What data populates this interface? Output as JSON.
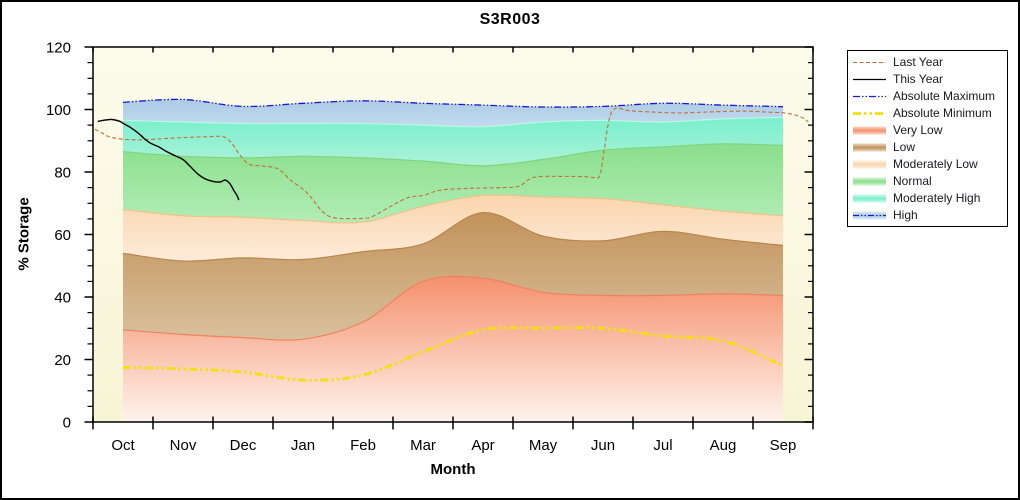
{
  "chart_data": {
    "type": "area",
    "title": "S3R003",
    "xlabel": "Month",
    "ylabel": "% Storage",
    "ylim": [
      0,
      120
    ],
    "y_major_ticks": [
      0,
      20,
      40,
      60,
      80,
      100,
      120
    ],
    "y_minor_step": 5,
    "grid": false,
    "legend_position": "right",
    "plot_bg": {
      "top": "#FDFCEC",
      "bottom": "#F8F4D6"
    },
    "frame_color": "#000000",
    "categories": [
      "Oct",
      "Nov",
      "Dec",
      "Jan",
      "Feb",
      "Mar",
      "Apr",
      "May",
      "Jun",
      "Jul",
      "Aug",
      "Sep"
    ],
    "bands": [
      {
        "name": "Very Low",
        "top": [
          29.5,
          28,
          27,
          26.5,
          32,
          45,
          46,
          41.5,
          40.5,
          40.5,
          41,
          40.5
        ],
        "base": "zero",
        "color_top": "#F5906C",
        "color_bottom": "#FEF3ED",
        "edge": "#EF8160"
      },
      {
        "name": "Low",
        "top": [
          54,
          51.5,
          52.5,
          52,
          54.5,
          57,
          67,
          59.5,
          58,
          61,
          58.5,
          56.5
        ],
        "base": "prev",
        "color_top": "#C2925A",
        "color_bottom": "#D9C19D",
        "edge": "#B7854A"
      },
      {
        "name": "Moderately Low",
        "top": [
          68,
          66,
          65.5,
          64.5,
          64,
          69,
          72.5,
          72,
          71.5,
          69.5,
          67.5,
          66
        ],
        "base": "prev",
        "color_top": "#FAD5AC",
        "color_bottom": "#FCEBDA",
        "edge": "#EDC28D"
      },
      {
        "name": "Normal",
        "top": [
          86.5,
          85,
          84.5,
          85,
          84.5,
          83.5,
          82,
          84,
          87,
          88,
          89,
          88.5
        ],
        "base": "prev",
        "color_top": "#8ADF8C",
        "color_bottom": "#B2EDB6",
        "edge": "#7ED57F"
      },
      {
        "name": "Moderately High",
        "top": [
          96.5,
          96,
          95.5,
          95.5,
          95.5,
          95,
          94.5,
          96,
          96.5,
          96,
          97,
          97.5
        ],
        "base": "prev",
        "color_top": "#79EFCD",
        "color_bottom": "#ADF2D8",
        "edge": "#B9F8E3"
      },
      {
        "name": "High",
        "top": [
          102.3,
          103.2,
          101,
          102,
          102.8,
          102,
          101.4,
          100.8,
          101,
          102,
          101.4,
          100.9
        ],
        "base": "prev",
        "color_top": "#ABCBE5",
        "color_bottom": "#C3DAEE",
        "edge": "none"
      }
    ],
    "lines": [
      {
        "name": "Absolute Maximum",
        "x": "months",
        "values": [
          102.3,
          103.2,
          101,
          102,
          102.8,
          102,
          101.4,
          100.8,
          101,
          102,
          101.4,
          100.9
        ],
        "color": "#1A1ACD",
        "width": 1.3,
        "dash": "7 2 1.5 2 1.5 2"
      },
      {
        "name": "Absolute Minimum",
        "x": "months",
        "values": [
          17.5,
          17,
          16,
          13.4,
          15,
          22.5,
          29.5,
          30,
          30,
          27.5,
          26,
          18
        ],
        "color": "#F2E10A",
        "width": 2.8,
        "dash": "8 3 2.5 3 2.5 3"
      },
      {
        "name": "Last Year",
        "points": [
          [
            -0.47,
            93.7
          ],
          [
            -0.35,
            92.5
          ],
          [
            -0.22,
            91.2
          ],
          [
            0,
            90.5
          ],
          [
            0.3,
            90.3
          ],
          [
            0.7,
            90.7
          ],
          [
            1,
            91
          ],
          [
            1.4,
            91.3
          ],
          [
            1.67,
            91.3
          ],
          [
            1.8,
            89.5
          ],
          [
            1.95,
            85.4
          ],
          [
            2.1,
            82.5
          ],
          [
            2.3,
            82
          ],
          [
            2.5,
            81.5
          ],
          [
            2.62,
            80.6
          ],
          [
            2.8,
            77.3
          ],
          [
            3,
            74.5
          ],
          [
            3.15,
            71.5
          ],
          [
            3.3,
            67.8
          ],
          [
            3.45,
            65.7
          ],
          [
            3.65,
            65.1
          ],
          [
            3.85,
            65.1
          ],
          [
            4,
            65.2
          ],
          [
            4.15,
            65.7
          ],
          [
            4.45,
            68.9
          ],
          [
            4.75,
            71.8
          ],
          [
            5,
            72.5
          ],
          [
            5.3,
            74.2
          ],
          [
            5.8,
            74.8
          ],
          [
            6.3,
            75
          ],
          [
            6.6,
            75.5
          ],
          [
            6.85,
            78.3
          ],
          [
            7.3,
            78.6
          ],
          [
            7.7,
            78.5
          ],
          [
            7.87,
            78.2
          ],
          [
            7.95,
            79
          ],
          [
            8.02,
            87
          ],
          [
            8.1,
            96.5
          ],
          [
            8.2,
            100.3
          ],
          [
            8.45,
            99.6
          ],
          [
            8.8,
            99.2
          ],
          [
            9.3,
            98.9
          ],
          [
            9.6,
            99.1
          ],
          [
            10.3,
            99.5
          ],
          [
            10.8,
            99.1
          ],
          [
            11.07,
            98.8
          ],
          [
            11.3,
            97.6
          ],
          [
            11.42,
            96.1
          ]
        ],
        "color": "#BE7139",
        "width": 1.1,
        "dash": "4 2.5"
      },
      {
        "name": "This Year",
        "points": [
          [
            -0.42,
            96.2
          ],
          [
            -0.3,
            96.6
          ],
          [
            -0.18,
            96.8
          ],
          [
            -0.05,
            96.2
          ],
          [
            0,
            95.6
          ],
          [
            0.12,
            94.3
          ],
          [
            0.25,
            92.5
          ],
          [
            0.35,
            90.8
          ],
          [
            0.45,
            89.3
          ],
          [
            0.6,
            88
          ],
          [
            0.72,
            86.6
          ],
          [
            0.87,
            85.2
          ],
          [
            1,
            84
          ],
          [
            1.12,
            81.8
          ],
          [
            1.25,
            79.3
          ],
          [
            1.37,
            77.8
          ],
          [
            1.5,
            77
          ],
          [
            1.62,
            76.8
          ],
          [
            1.7,
            77.4
          ],
          [
            1.78,
            76.3
          ],
          [
            1.85,
            74
          ],
          [
            1.9,
            72.5
          ],
          [
            1.93,
            71
          ]
        ],
        "color": "#000000",
        "width": 1.4,
        "dash": ""
      }
    ],
    "legend": [
      {
        "label": "Last Year",
        "swatch": "line",
        "color": "#BE7139",
        "dash": "4 2.5",
        "width": 1.1
      },
      {
        "label": "This Year",
        "swatch": "line",
        "color": "#000000",
        "dash": "",
        "width": 1.3
      },
      {
        "label": "Absolute Maximum",
        "swatch": "line",
        "color": "#1A1ACD",
        "dash": "7 2 1.5 2 1.5 2",
        "width": 1.3
      },
      {
        "label": "Absolute Minimum",
        "swatch": "line",
        "color": "#F2E10A",
        "dash": "8 3 2.5 3 2.5 3",
        "width": 2.8
      },
      {
        "label": "Very Low",
        "swatch": "band",
        "color": "#F5906C"
      },
      {
        "label": "Low",
        "swatch": "band",
        "color": "#C2925A"
      },
      {
        "label": "Moderately Low",
        "swatch": "band",
        "color": "#FAD5AC"
      },
      {
        "label": "Normal",
        "swatch": "band",
        "color": "#8ADF8C"
      },
      {
        "label": "Moderately High",
        "swatch": "band",
        "color": "#79EFCD"
      },
      {
        "label": "High",
        "swatch": "band-line",
        "color": "#ABCBE5",
        "line_color": "#1A1ACD",
        "dash": "6 2 1.5 2 1.5 2"
      }
    ]
  }
}
